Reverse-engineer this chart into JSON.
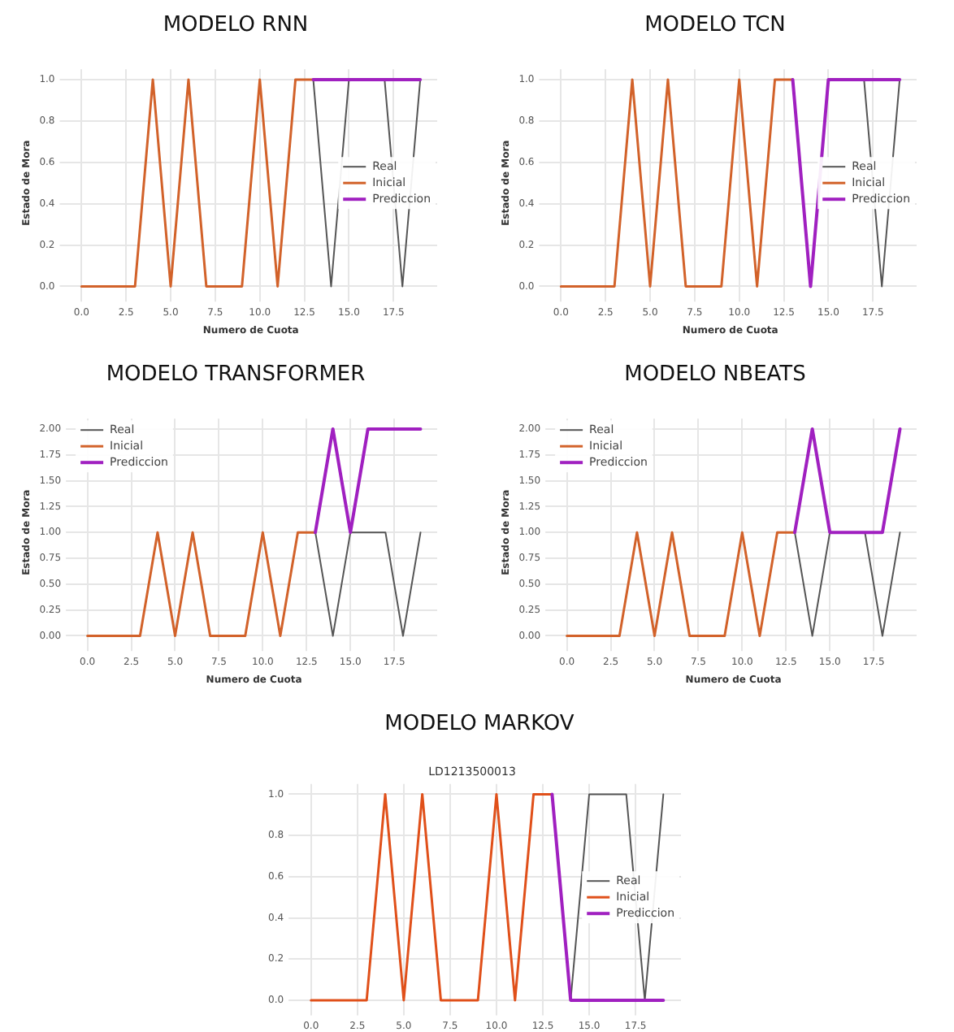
{
  "chart_data": [
    {
      "type": "line",
      "title": "MODELO RNN",
      "xlabel": "Numero de Cuota",
      "ylabel": "Estado de Mora",
      "xlim": [
        -0.95,
        19.95
      ],
      "ylim": [
        -0.05,
        1.05
      ],
      "xticks": [
        {
          "value": 0,
          "label": "0.0"
        },
        2.5,
        {
          "value": 5,
          "label": "5.0"
        },
        7.5,
        {
          "value": 10,
          "label": "10.0"
        },
        12.5,
        {
          "value": 15,
          "label": "15.0"
        },
        17.5
      ],
      "yticks": [
        {
          "value": 0,
          "label": "0.0"
        },
        0.2,
        0.4,
        0.6,
        0.8,
        {
          "value": 1,
          "label": "1.0"
        }
      ],
      "grid": true,
      "legend": "right",
      "series": [
        {
          "name": "Real",
          "color": "#555555",
          "x": [
            13,
            14,
            15,
            16,
            17,
            18,
            19
          ],
          "values": [
            1,
            0,
            1,
            null,
            1,
            0,
            1
          ]
        },
        {
          "name": "Inicial",
          "color": "#d2622a",
          "x": [
            0,
            1,
            2,
            3,
            4,
            5,
            6,
            7,
            8,
            9,
            10,
            11,
            12,
            13
          ],
          "values": [
            0,
            0,
            0,
            0,
            1,
            0,
            1,
            0,
            0,
            0,
            1,
            0,
            1,
            1
          ]
        },
        {
          "name": "Prediccion",
          "color": "#a020c0",
          "x": [
            13,
            14,
            15,
            16,
            17,
            18,
            19
          ],
          "values": [
            1,
            1,
            1,
            1,
            1,
            1,
            1
          ]
        }
      ]
    },
    {
      "type": "line",
      "title": "MODELO TCN",
      "xlabel": "Numero de Cuota",
      "ylabel": "Estado de Mora",
      "xlim": [
        -0.95,
        19.95
      ],
      "ylim": [
        -0.05,
        1.05
      ],
      "xticks": [
        {
          "value": 0,
          "label": "0.0"
        },
        2.5,
        {
          "value": 5,
          "label": "5.0"
        },
        7.5,
        {
          "value": 10,
          "label": "10.0"
        },
        12.5,
        {
          "value": 15,
          "label": "15.0"
        },
        17.5
      ],
      "yticks": [
        {
          "value": 0,
          "label": "0.0"
        },
        0.2,
        0.4,
        0.6,
        0.8,
        {
          "value": 1,
          "label": "1.0"
        }
      ],
      "grid": true,
      "legend": "right",
      "series": [
        {
          "name": "Real",
          "color": "#555555",
          "x": [
            17,
            18,
            19
          ],
          "values": [
            1,
            0,
            1
          ]
        },
        {
          "name": "Inicial",
          "color": "#d2622a",
          "x": [
            0,
            1,
            2,
            3,
            4,
            5,
            6,
            7,
            8,
            9,
            10,
            11,
            12,
            13
          ],
          "values": [
            0,
            0,
            0,
            0,
            1,
            0,
            1,
            0,
            0,
            0,
            1,
            0,
            1,
            1
          ]
        },
        {
          "name": "Prediccion",
          "color": "#a020c0",
          "x": [
            13,
            14,
            15,
            16,
            17,
            18,
            19
          ],
          "values": [
            1,
            0,
            1,
            1,
            1,
            1,
            1
          ]
        }
      ]
    },
    {
      "type": "line",
      "title": "MODELO TRANSFORMER",
      "xlabel": "Numero de Cuota",
      "ylabel": "Estado de Mora",
      "xlim": [
        -0.95,
        19.95
      ],
      "ylim": [
        -0.1,
        2.1
      ],
      "xticks": [
        {
          "value": 0,
          "label": "0.0"
        },
        2.5,
        {
          "value": 5,
          "label": "5.0"
        },
        7.5,
        {
          "value": 10,
          "label": "10.0"
        },
        12.5,
        {
          "value": 15,
          "label": "15.0"
        },
        17.5
      ],
      "yticks": [
        {
          "value": 0,
          "label": "0.00"
        },
        0.25,
        {
          "value": 0.5,
          "label": "0.50"
        },
        0.75,
        {
          "value": 1,
          "label": "1.00"
        },
        1.25,
        {
          "value": 1.5,
          "label": "1.50"
        },
        1.75,
        {
          "value": 2,
          "label": "2.00"
        }
      ],
      "grid": true,
      "legend": "top left",
      "series": [
        {
          "name": "Real",
          "color": "#555555",
          "x": [
            13,
            14,
            15,
            16,
            17,
            18,
            19
          ],
          "values": [
            1,
            0,
            1,
            1,
            1,
            0,
            1
          ]
        },
        {
          "name": "Inicial",
          "color": "#d2622a",
          "x": [
            0,
            1,
            2,
            3,
            4,
            5,
            6,
            7,
            8,
            9,
            10,
            11,
            12,
            13
          ],
          "values": [
            0,
            0,
            0,
            0,
            1,
            0,
            1,
            0,
            0,
            0,
            1,
            0,
            1,
            1
          ]
        },
        {
          "name": "Prediccion",
          "color": "#a020c0",
          "x": [
            13,
            14,
            15,
            16,
            17,
            18,
            19
          ],
          "values": [
            1,
            2,
            1,
            2,
            2,
            2,
            2
          ]
        }
      ]
    },
    {
      "type": "line",
      "title": "MODELO NBEATS",
      "xlabel": "Numero de Cuota",
      "ylabel": "Estado de Mora",
      "xlim": [
        -0.95,
        19.95
      ],
      "ylim": [
        -0.1,
        2.1
      ],
      "xticks": [
        {
          "value": 0,
          "label": "0.0"
        },
        2.5,
        {
          "value": 5,
          "label": "5.0"
        },
        7.5,
        {
          "value": 10,
          "label": "10.0"
        },
        12.5,
        {
          "value": 15,
          "label": "15.0"
        },
        17.5
      ],
      "yticks": [
        {
          "value": 0,
          "label": "0.00"
        },
        0.25,
        {
          "value": 0.5,
          "label": "0.50"
        },
        0.75,
        {
          "value": 1,
          "label": "1.00"
        },
        1.25,
        {
          "value": 1.5,
          "label": "1.50"
        },
        1.75,
        {
          "value": 2,
          "label": "2.00"
        }
      ],
      "grid": true,
      "legend": "top left",
      "series": [
        {
          "name": "Real",
          "color": "#555555",
          "x": [
            13,
            14,
            15,
            16,
            17,
            18,
            19
          ],
          "values": [
            1,
            0,
            1,
            null,
            1,
            0,
            1
          ]
        },
        {
          "name": "Inicial",
          "color": "#d2622a",
          "x": [
            0,
            1,
            2,
            3,
            4,
            5,
            6,
            7,
            8,
            9,
            10,
            11,
            12,
            13
          ],
          "values": [
            0,
            0,
            0,
            0,
            1,
            0,
            1,
            0,
            0,
            0,
            1,
            0,
            1,
            1
          ]
        },
        {
          "name": "Prediccion",
          "color": "#a020c0",
          "x": [
            13,
            14,
            15,
            16,
            17,
            18,
            19
          ],
          "values": [
            1,
            2,
            1,
            1,
            1,
            1,
            2
          ]
        }
      ]
    },
    {
      "type": "line",
      "title": "MODELO MARKOV",
      "subtitle": "LD1213500013",
      "xlim": [
        -0.95,
        19.95
      ],
      "ylim": [
        -0.05,
        1.05
      ],
      "xticks": [
        {
          "value": 0,
          "label": "0.0"
        },
        2.5,
        {
          "value": 5,
          "label": "5.0"
        },
        7.5,
        {
          "value": 10,
          "label": "10.0"
        },
        12.5,
        {
          "value": 15,
          "label": "15.0"
        },
        17.5
      ],
      "yticks": [
        {
          "value": 0,
          "label": "0.0"
        },
        0.2,
        0.4,
        0.6,
        0.8,
        {
          "value": 1,
          "label": "1.0"
        }
      ],
      "grid": true,
      "legend": "right",
      "series": [
        {
          "name": "Real",
          "color": "#555555",
          "x": [
            14,
            15,
            16,
            17,
            18,
            19
          ],
          "values": [
            0,
            1,
            1,
            1,
            0,
            1
          ]
        },
        {
          "name": "Inicial",
          "color": "#e0501a",
          "x": [
            0,
            1,
            2,
            3,
            4,
            5,
            6,
            7,
            8,
            9,
            10,
            11,
            12,
            13
          ],
          "values": [
            0,
            0,
            0,
            0,
            1,
            0,
            1,
            0,
            0,
            0,
            1,
            0,
            1,
            1
          ]
        },
        {
          "name": "Prediccion",
          "color": "#a020c0",
          "x": [
            13,
            14,
            15,
            16,
            17,
            18,
            19
          ],
          "values": [
            1,
            0,
            0,
            0,
            0,
            0,
            0
          ]
        }
      ]
    }
  ]
}
